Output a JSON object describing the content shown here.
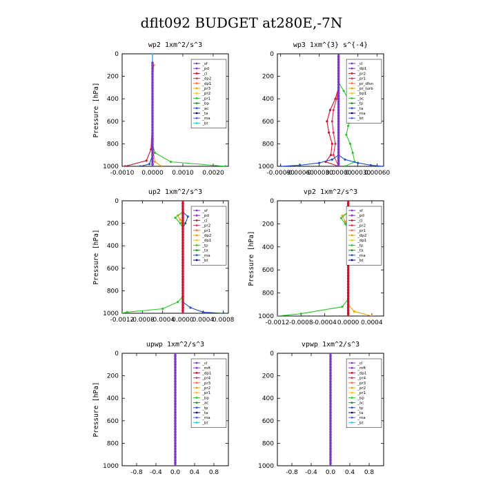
{
  "figure_title": "dflt092  BUDGET at280E,-7N",
  "chart_data": [
    {
      "type": "line",
      "id": "wp2",
      "title": "wp2   1xm^2/s^3",
      "ylabel": "Pressure [hPa]",
      "xlim": [
        -0.001,
        0.0025
      ],
      "ylim": [
        1000,
        0
      ],
      "xticks": [
        -0.001,
        0.0,
        0.001,
        0.002
      ],
      "xtick_labels": [
        "-0.0010",
        "0.0000",
        "0.0010",
        "0.0020"
      ],
      "yticks": [
        0,
        200,
        400,
        600,
        800,
        1000
      ],
      "ytick_labels": [
        "0",
        "200",
        "400",
        "600",
        "800",
        "1000"
      ],
      "legend": [
        "_sf",
        "_pd",
        "_cl",
        "_dp2",
        "_dp1",
        "_pr3",
        "_pr2",
        "_pr1",
        "_bp",
        "_ac",
        "_ta",
        "_ma",
        "_bt"
      ],
      "series": [
        {
          "name": "_sf",
          "color": "#7a38c8",
          "points": [
            [
              0,
              0
            ],
            [
              0,
              400
            ],
            [
              0,
              900
            ],
            [
              0,
              1000
            ]
          ]
        },
        {
          "name": "_pd",
          "color": "#7a38c8",
          "points": [
            [
              0,
              0
            ],
            [
              0,
              400
            ],
            [
              0,
              900
            ],
            [
              0,
              1000
            ]
          ]
        },
        {
          "name": "_dp1",
          "color": "#c8102e",
          "points": [
            [
              0,
              0
            ],
            [
              0,
              600
            ],
            [
              -5e-05,
              850
            ],
            [
              -0.0002,
              950
            ],
            [
              -0.0009,
              1000
            ]
          ]
        },
        {
          "name": "_pr3",
          "color": "#f0a000",
          "points": [
            [
              5e-05,
              100
            ],
            [
              0,
              200
            ],
            [
              0,
              800
            ],
            [
              8e-05,
              960
            ],
            [
              0.0003,
              1000
            ]
          ]
        },
        {
          "name": "_pr1",
          "color": "#28c828",
          "points": [
            [
              0,
              0
            ],
            [
              0,
              800
            ],
            [
              8e-05,
              880
            ],
            [
              0.0006,
              960
            ],
            [
              0.0024,
              1000
            ]
          ]
        },
        {
          "name": "_ta",
          "color": "#2050c8",
          "points": [
            [
              0,
              0
            ],
            [
              0,
              900
            ],
            [
              -0.0001,
              980
            ],
            [
              -0.0004,
              1000
            ]
          ]
        },
        {
          "name": "_bt",
          "color": "#30c8e8",
          "points": [
            [
              0,
              0
            ],
            [
              0,
              1000
            ]
          ]
        }
      ],
      "mean": {
        "color": "#7a38c8",
        "points": [
          [
            0,
            80
          ],
          [
            0,
            1000
          ]
        ]
      }
    },
    {
      "type": "line",
      "id": "wp3",
      "title": "wp3   1xm^{3} s^{-4}",
      "ylabel": "",
      "xlim": [
        -0.00095,
        0.0007
      ],
      "ylim": [
        1000,
        0
      ],
      "xticks": [
        -0.0009,
        -0.0006,
        -0.0003,
        0.0,
        0.0003,
        0.0006
      ],
      "xtick_labels": [
        "-0.00090",
        "-0.00060",
        "-0.00030",
        "0.00000",
        "0.00030",
        "0.00060"
      ],
      "yticks": [
        0,
        200,
        400,
        600,
        800,
        1000
      ],
      "ytick_labels": [
        "0",
        "200",
        "400",
        "600",
        "800",
        "1000"
      ],
      "legend": [
        "_cl",
        "_dp1",
        "_pr2",
        "_pr1",
        "_pr_dfsn",
        "_pr_turb",
        "_bp1",
        "_ac",
        "_tp",
        "_ta",
        "_ma",
        "_bt"
      ],
      "series": [
        {
          "name": "_pr2",
          "color": "#c8102e",
          "points": [
            [
              0,
              300
            ],
            [
              -5e-05,
              400
            ],
            [
              -0.00013,
              500
            ],
            [
              -0.00018,
              600
            ],
            [
              -0.00015,
              700
            ],
            [
              -0.0001,
              800
            ],
            [
              -0.00012,
              900
            ],
            [
              -0.0002,
              960
            ],
            [
              0,
              1000
            ]
          ]
        },
        {
          "name": "_pr1",
          "color": "#e03050",
          "points": [
            [
              0,
              300
            ],
            [
              -3e-05,
              400
            ],
            [
              -8e-05,
              500
            ],
            [
              -0.0001,
              600
            ],
            [
              -8e-05,
              700
            ],
            [
              -5e-05,
              800
            ],
            [
              -8e-05,
              900
            ],
            [
              0,
              1000
            ]
          ]
        },
        {
          "name": "_bp1",
          "color": "#28c828",
          "points": [
            [
              0,
              250
            ],
            [
              8e-05,
              330
            ],
            [
              0.00015,
              400
            ],
            [
              0.00018,
              480
            ],
            [
              0.0002,
              560
            ],
            [
              0.00015,
              640
            ],
            [
              0.00012,
              720
            ],
            [
              0.00018,
              800
            ],
            [
              0.00022,
              880
            ],
            [
              0.00025,
              960
            ],
            [
              0.0001,
              1000
            ]
          ]
        },
        {
          "name": "_ta",
          "color": "#2050c8",
          "points": [
            [
              0,
              900
            ],
            [
              -0.0001,
              940
            ],
            [
              -0.0003,
              970
            ],
            [
              -0.0006,
              990
            ],
            [
              -0.0009,
              1000
            ]
          ]
        },
        {
          "name": "_tp",
          "color": "#2050c8",
          "points": [
            [
              0,
              900
            ],
            [
              0.0001,
              940
            ],
            [
              0.0003,
              970
            ],
            [
              0.0005,
              990
            ],
            [
              0.0007,
              1000
            ]
          ]
        },
        {
          "name": "_bt",
          "color": "#30c8e8",
          "points": [
            [
              0,
              0
            ],
            [
              0,
              1000
            ]
          ]
        }
      ],
      "mean": {
        "color": "#7a38c8",
        "points": [
          [
            0,
            0
          ],
          [
            0,
            1000
          ]
        ]
      }
    },
    {
      "type": "line",
      "id": "up2",
      "title": "up2   1xm^2/s^3",
      "ylabel": "Pressure [hPa]",
      "xlim": [
        -0.0012,
        0.0009
      ],
      "ylim": [
        1000,
        0
      ],
      "xticks": [
        -0.0012,
        -0.0008,
        -0.0004,
        0.0,
        0.0004,
        0.0008
      ],
      "xtick_labels": [
        "-0.0012",
        "-0.0008",
        "-0.0004",
        "0.0000",
        "0.0004",
        "0.0008"
      ],
      "yticks": [
        0,
        200,
        400,
        600,
        800,
        1000
      ],
      "ytick_labels": [
        "0",
        "200",
        "400",
        "600",
        "800",
        "1000"
      ],
      "legend": [
        "_sf",
        "_pd",
        "_cl",
        "_pr2",
        "_pr1",
        "_dp2",
        "_dp1",
        "_tp",
        "_ta",
        "_ma",
        "_bt"
      ],
      "series": [
        {
          "name": "_pr2",
          "color": "#f0a000",
          "points": [
            [
              0,
              100
            ],
            [
              -0.0001,
              130
            ],
            [
              -5e-05,
              170
            ],
            [
              0,
              220
            ],
            [
              0,
              1000
            ]
          ]
        },
        {
          "name": "_dp1",
          "color": "#28c828",
          "points": [
            [
              0,
              0
            ],
            [
              0,
              100
            ],
            [
              -0.00015,
              150
            ],
            [
              -5e-05,
              200
            ],
            [
              0,
              240
            ],
            [
              0,
              850
            ],
            [
              -0.0001,
              900
            ],
            [
              -0.0004,
              960
            ],
            [
              -0.0011,
              990
            ],
            [
              -0.0012,
              1000
            ]
          ]
        },
        {
          "name": "_tp",
          "color": "#2050c8",
          "points": [
            [
              0,
              100
            ],
            [
              0.0001,
              140
            ],
            [
              5e-05,
              200
            ],
            [
              0,
              240
            ],
            [
              0,
              900
            ],
            [
              0.00015,
              950
            ],
            [
              0.0004,
              990
            ],
            [
              0.0008,
              1000
            ]
          ]
        },
        {
          "name": "_bt",
          "color": "#30c8e8",
          "points": [
            [
              0,
              0
            ],
            [
              0,
              1000
            ]
          ]
        }
      ],
      "mean": {
        "color": "#c8102e",
        "points": [
          [
            0,
            0
          ],
          [
            0,
            1000
          ]
        ]
      }
    },
    {
      "type": "line",
      "id": "vp2",
      "title": "vp2   1xm^2/s^3",
      "ylabel": "Pressure [hPa]",
      "xlim": [
        -0.0012,
        0.0006
      ],
      "ylim": [
        1000,
        0
      ],
      "xticks": [
        -0.0012,
        -0.0008,
        -0.0004,
        0.0,
        0.0004
      ],
      "xtick_labels": [
        "-0.0012",
        "-0.0008",
        "-0.0004",
        "0.0000",
        "0.0004"
      ],
      "yticks": [
        0,
        200,
        400,
        600,
        800,
        1000
      ],
      "ytick_labels": [
        "0",
        "200",
        "400",
        "600",
        "800",
        "1000"
      ],
      "legend": [
        "_sf",
        "_pd",
        "_cl",
        "_pr2",
        "_pr1",
        "_dp2",
        "_dp1",
        "_tp",
        "_ta",
        "_ma",
        "_bt"
      ],
      "series": [
        {
          "name": "_pr2",
          "color": "#f0a000",
          "points": [
            [
              0,
              100
            ],
            [
              -0.0001,
              130
            ],
            [
              -5e-05,
              180
            ],
            [
              0,
              220
            ],
            [
              0,
              900
            ],
            [
              0.0001,
              960
            ],
            [
              0.0004,
              1000
            ]
          ]
        },
        {
          "name": "_dp1",
          "color": "#28c828",
          "points": [
            [
              0,
              0
            ],
            [
              0,
              100
            ],
            [
              -0.00012,
              150
            ],
            [
              -5e-05,
              200
            ],
            [
              0,
              250
            ],
            [
              0,
              850
            ],
            [
              -0.0001,
              920
            ],
            [
              -0.0008,
              980
            ],
            [
              -0.0012,
              1000
            ]
          ]
        },
        {
          "name": "_tp",
          "color": "#2050c8",
          "points": [
            [
              0,
              100
            ],
            [
              8e-05,
              140
            ],
            [
              0,
              220
            ],
            [
              0,
              1000
            ]
          ]
        },
        {
          "name": "_bt",
          "color": "#30c8e8",
          "points": [
            [
              0,
              0
            ],
            [
              0,
              1000
            ]
          ]
        }
      ],
      "mean": {
        "color": "#c8102e",
        "points": [
          [
            0,
            0
          ],
          [
            0,
            1000
          ]
        ]
      }
    },
    {
      "type": "line",
      "id": "upwp",
      "title": "upwp   1xm^2/s^3",
      "ylabel": "Pressure [hPa]",
      "xlim": [
        -1.1,
        1.1
      ],
      "ylim": [
        1000,
        0
      ],
      "xticks": [
        -0.8,
        -0.4,
        0.0,
        0.4,
        0.8
      ],
      "xtick_labels": [
        "-0.8",
        "-0.4",
        "0.0",
        "0.4",
        "0.8"
      ],
      "yticks": [
        0,
        200,
        400,
        600,
        800,
        1000
      ],
      "ytick_labels": [
        "0",
        "200",
        "400",
        "600",
        "800",
        "1000"
      ],
      "legend": [
        "_cl",
        "_mft",
        "_dp1",
        "_pr4",
        "_pr3",
        "_pr2",
        "_pr1",
        "_bp",
        "_ac",
        "_tp",
        "_ta",
        "_ma",
        "_bt"
      ],
      "series": [],
      "mean": {
        "color": "#7a38c8",
        "points": [
          [
            0,
            0
          ],
          [
            0,
            1000
          ]
        ]
      }
    },
    {
      "type": "line",
      "id": "vpwp",
      "title": "vpwp   1xm^2/s^3",
      "ylabel": "",
      "xlim": [
        -1.1,
        1.1
      ],
      "ylim": [
        1000,
        0
      ],
      "xticks": [
        -0.8,
        -0.4,
        0.0,
        0.4,
        0.8
      ],
      "xtick_labels": [
        "-0.8",
        "-0.4",
        "0.0",
        "0.4",
        "0.8"
      ],
      "yticks": [
        0,
        200,
        400,
        600,
        800,
        1000
      ],
      "ytick_labels": [
        "0",
        "200",
        "400",
        "600",
        "800",
        "1000"
      ],
      "legend": [
        "_cl",
        "_mft",
        "_dp1",
        "_pr4",
        "_pr3",
        "_pr2",
        "_pr1",
        "_bp",
        "_ac",
        "_tp",
        "_ta",
        "_ma",
        "_bt"
      ],
      "series": [],
      "mean": {
        "color": "#7a38c8",
        "points": [
          [
            0,
            0
          ],
          [
            0,
            1000
          ]
        ]
      }
    }
  ],
  "legend_colors": [
    "#7a38c8",
    "#8a2be2",
    "#c8102e",
    "#e03050",
    "#ff6a3d",
    "#f0a000",
    "#f5c518",
    "#28c828",
    "#1f8f1f",
    "#2050c8",
    "#000080",
    "#4060ff",
    "#30c8e8"
  ]
}
